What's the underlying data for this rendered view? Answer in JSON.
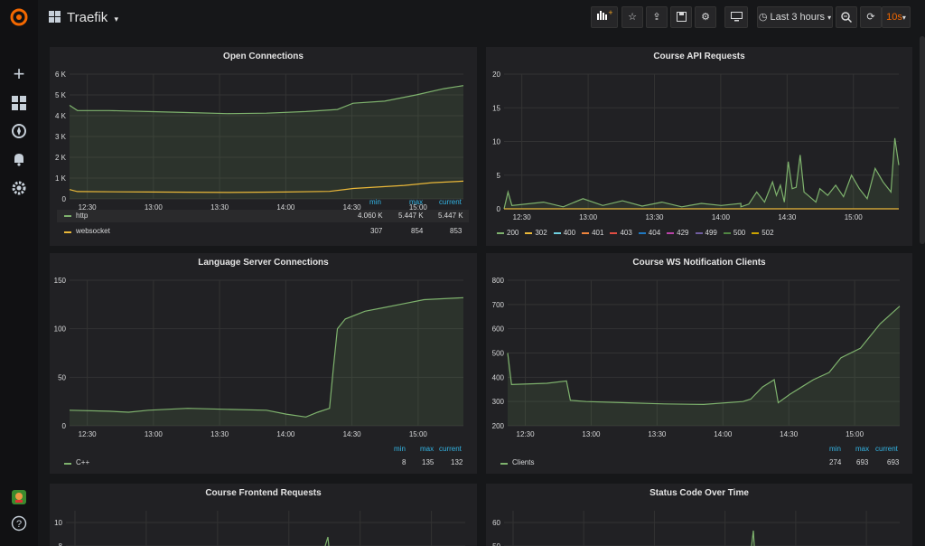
{
  "dashboard": {
    "title": "Traefik"
  },
  "toolbar": {
    "time_range": "Last 3 hours",
    "refresh": "10s"
  },
  "panels": {
    "open_connections": {
      "title": "Open Connections",
      "legend_headers": [
        "min",
        "max",
        "current"
      ],
      "legend": [
        {
          "name": "http",
          "min": "4.060 K",
          "max": "5.447 K",
          "current": "5.447 K",
          "color": "#7eb26d"
        },
        {
          "name": "websocket",
          "min": "307",
          "max": "854",
          "current": "853",
          "color": "#eab839"
        }
      ]
    },
    "course_api": {
      "title": "Course API Requests",
      "legend": [
        {
          "name": "200",
          "color": "#7eb26d"
        },
        {
          "name": "302",
          "color": "#eab839"
        },
        {
          "name": "400",
          "color": "#6ed0e0"
        },
        {
          "name": "401",
          "color": "#ef843c"
        },
        {
          "name": "403",
          "color": "#e24d42"
        },
        {
          "name": "404",
          "color": "#1f78c1"
        },
        {
          "name": "429",
          "color": "#ba43a9"
        },
        {
          "name": "499",
          "color": "#705da0"
        },
        {
          "name": "500",
          "color": "#508642"
        },
        {
          "name": "502",
          "color": "#cca300"
        }
      ]
    },
    "language_server": {
      "title": "Language Server Connections",
      "legend_headers": [
        "min",
        "max",
        "current"
      ],
      "legend": [
        {
          "name": "C++",
          "min": "8",
          "max": "135",
          "current": "132",
          "color": "#7eb26d"
        }
      ]
    },
    "course_ws": {
      "title": "Course WS Notification Clients",
      "legend_headers": [
        "min",
        "max",
        "current"
      ],
      "legend": [
        {
          "name": "Clients",
          "min": "274",
          "max": "693",
          "current": "693",
          "color": "#7eb26d"
        }
      ]
    },
    "course_frontend": {
      "title": "Course Frontend Requests"
    },
    "status_code": {
      "title": "Status Code Over Time"
    }
  },
  "chart_data": [
    {
      "type": "line",
      "title": "Open Connections",
      "x": [
        "12:30",
        "13:00",
        "13:30",
        "14:00",
        "14:30",
        "15:00"
      ],
      "yticks": [
        "0",
        "1 K",
        "2 K",
        "3 K",
        "4 K",
        "5 K",
        "6 K"
      ],
      "ylim": [
        0,
        6000
      ],
      "series": [
        {
          "name": "http",
          "color": "#7eb26d",
          "fill": true,
          "points": [
            [
              0,
              4500
            ],
            [
              0.02,
              4250
            ],
            [
              0.1,
              4250
            ],
            [
              0.2,
              4200
            ],
            [
              0.3,
              4150
            ],
            [
              0.4,
              4100
            ],
            [
              0.5,
              4120
            ],
            [
              0.6,
              4200
            ],
            [
              0.68,
              4300
            ],
            [
              0.72,
              4600
            ],
            [
              0.8,
              4700
            ],
            [
              0.88,
              5000
            ],
            [
              0.95,
              5300
            ],
            [
              1,
              5447
            ]
          ]
        },
        {
          "name": "websocket",
          "color": "#eab839",
          "fill": false,
          "points": [
            [
              0,
              450
            ],
            [
              0.02,
              350
            ],
            [
              0.2,
              330
            ],
            [
              0.4,
              310
            ],
            [
              0.55,
              330
            ],
            [
              0.66,
              360
            ],
            [
              0.72,
              500
            ],
            [
              0.85,
              650
            ],
            [
              0.92,
              780
            ],
            [
              1,
              853
            ]
          ]
        }
      ]
    },
    {
      "type": "line",
      "title": "Course API Requests",
      "x": [
        "12:30",
        "13:00",
        "13:30",
        "14:00",
        "14:30",
        "15:00"
      ],
      "yticks": [
        "0",
        "5",
        "10",
        "15",
        "20"
      ],
      "ylim": [
        0,
        20
      ],
      "series": [
        {
          "name": "200",
          "color": "#7eb26d",
          "fill": true,
          "points": [
            [
              0,
              0
            ],
            [
              0.01,
              2.5
            ],
            [
              0.02,
              0.5
            ],
            [
              0.1,
              1
            ],
            [
              0.15,
              0.3
            ],
            [
              0.2,
              1.5
            ],
            [
              0.25,
              0.5
            ],
            [
              0.3,
              1.2
            ],
            [
              0.35,
              0.4
            ],
            [
              0.4,
              1
            ],
            [
              0.45,
              0.3
            ],
            [
              0.5,
              0.8
            ],
            [
              0.55,
              0.5
            ],
            [
              0.6,
              0.8
            ],
            [
              0.6,
              0.3
            ],
            [
              0.62,
              0.7
            ],
            [
              0.64,
              2.5
            ],
            [
              0.66,
              1
            ],
            [
              0.68,
              4
            ],
            [
              0.69,
              2
            ],
            [
              0.7,
              3.5
            ],
            [
              0.71,
              1
            ],
            [
              0.72,
              7
            ],
            [
              0.73,
              3
            ],
            [
              0.74,
              3.2
            ],
            [
              0.75,
              8
            ],
            [
              0.76,
              2.5
            ],
            [
              0.77,
              2
            ],
            [
              0.79,
              1
            ],
            [
              0.8,
              3
            ],
            [
              0.82,
              2
            ],
            [
              0.84,
              3.5
            ],
            [
              0.86,
              1.8
            ],
            [
              0.88,
              5
            ],
            [
              0.9,
              3
            ],
            [
              0.92,
              1.5
            ],
            [
              0.94,
              6
            ],
            [
              0.96,
              4
            ],
            [
              0.98,
              2.5
            ],
            [
              0.99,
              10.5
            ],
            [
              1,
              6.5
            ]
          ]
        },
        {
          "name": "302",
          "color": "#eab839",
          "fill": false,
          "points": [
            [
              0,
              0
            ],
            [
              1,
              0
            ]
          ]
        }
      ]
    },
    {
      "type": "line",
      "title": "Language Server Connections",
      "x": [
        "12:30",
        "13:00",
        "13:30",
        "14:00",
        "14:30",
        "15:00"
      ],
      "yticks": [
        "0",
        "50",
        "100",
        "150"
      ],
      "ylim": [
        0,
        150
      ],
      "series": [
        {
          "name": "C++",
          "color": "#7eb26d",
          "fill": true,
          "points": [
            [
              0,
              16
            ],
            [
              0.1,
              15
            ],
            [
              0.15,
              14
            ],
            [
              0.2,
              16
            ],
            [
              0.3,
              18
            ],
            [
              0.4,
              17
            ],
            [
              0.5,
              16
            ],
            [
              0.55,
              12
            ],
            [
              0.6,
              9
            ],
            [
              0.63,
              14
            ],
            [
              0.66,
              18
            ],
            [
              0.67,
              60
            ],
            [
              0.68,
              100
            ],
            [
              0.7,
              110
            ],
            [
              0.75,
              118
            ],
            [
              0.8,
              122
            ],
            [
              0.85,
              126
            ],
            [
              0.9,
              130
            ],
            [
              1,
              132
            ]
          ]
        }
      ]
    },
    {
      "type": "line",
      "title": "Course WS Notification Clients",
      "x": [
        "12:30",
        "13:00",
        "13:30",
        "14:00",
        "14:30",
        "15:00"
      ],
      "yticks": [
        "200",
        "300",
        "400",
        "500",
        "600",
        "700",
        "800"
      ],
      "ylim": [
        200,
        800
      ],
      "series": [
        {
          "name": "Clients",
          "color": "#7eb26d",
          "fill": true,
          "points": [
            [
              0,
              500
            ],
            [
              0.01,
              370
            ],
            [
              0.1,
              375
            ],
            [
              0.15,
              385
            ],
            [
              0.16,
              305
            ],
            [
              0.2,
              300
            ],
            [
              0.3,
              295
            ],
            [
              0.4,
              290
            ],
            [
              0.5,
              288
            ],
            [
              0.6,
              300
            ],
            [
              0.62,
              310
            ],
            [
              0.65,
              360
            ],
            [
              0.68,
              390
            ],
            [
              0.69,
              295
            ],
            [
              0.72,
              330
            ],
            [
              0.78,
              390
            ],
            [
              0.82,
              420
            ],
            [
              0.85,
              480
            ],
            [
              0.9,
              520
            ],
            [
              0.95,
              620
            ],
            [
              1,
              693
            ]
          ]
        }
      ]
    },
    {
      "type": "line",
      "title": "Course Frontend Requests",
      "yticks": [
        "8",
        "10"
      ],
      "ylim": [
        7,
        11
      ],
      "series": []
    },
    {
      "type": "line",
      "title": "Status Code Over Time",
      "yticks": [
        "50",
        "60"
      ],
      "ylim": [
        45,
        65
      ],
      "series": []
    }
  ]
}
